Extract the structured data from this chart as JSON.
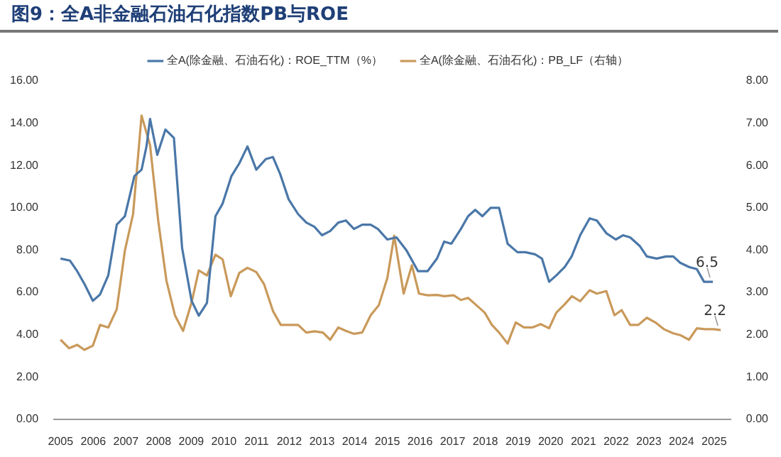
{
  "chart_data": {
    "type": "line",
    "title": "图9：全A非金融石油石化指数PB与ROE",
    "xlim": [
      2004.8,
      2025.5
    ],
    "xticks": [
      2005,
      2006,
      2007,
      2008,
      2009,
      2010,
      2011,
      2012,
      2013,
      2014,
      2015,
      2016,
      2017,
      2018,
      2019,
      2020,
      2021,
      2022,
      2023,
      2024,
      2025
    ],
    "ylim": [
      0,
      16
    ],
    "yticks": [
      {
        "value": 0,
        "label": "0.00"
      },
      {
        "value": 2,
        "label": "2.00"
      },
      {
        "value": 4,
        "label": "4.00"
      },
      {
        "value": 6,
        "label": "6.00"
      },
      {
        "value": 8,
        "label": "8.00"
      },
      {
        "value": 10,
        "label": "10.00"
      },
      {
        "value": 12,
        "label": "12.00"
      },
      {
        "value": 14,
        "label": "14.00"
      },
      {
        "value": 16,
        "label": "16.00"
      }
    ],
    "y2lim": [
      0,
      8
    ],
    "y2ticks": [
      {
        "value": 0,
        "label": "0.00"
      },
      {
        "value": 1,
        "label": "1.00"
      },
      {
        "value": 2,
        "label": "2.00"
      },
      {
        "value": 3,
        "label": "3.00"
      },
      {
        "value": 4,
        "label": "4.00"
      },
      {
        "value": 5,
        "label": "5.00"
      },
      {
        "value": 6,
        "label": "6.00"
      },
      {
        "value": 7,
        "label": "7.00"
      },
      {
        "value": 8,
        "label": "8.00"
      }
    ],
    "grid": false,
    "legend": "top",
    "marker": "none",
    "line_style": "solid",
    "annotations": [
      "6.5",
      "2.2"
    ],
    "series": [
      {
        "name": "全A(除金融、石油石化)：ROE_TTM（%）",
        "color": "#4a77a8",
        "x": [
          2005.0,
          2005.29,
          2005.51,
          2005.73,
          2005.99,
          2006.21,
          2006.46,
          2006.72,
          2006.97,
          2007.26,
          2007.48,
          2007.63,
          2007.74,
          2007.96,
          2008.21,
          2008.47,
          2008.72,
          2009.01,
          2009.23,
          2009.48,
          2009.74,
          2009.96,
          2010.23,
          2010.47,
          2010.72,
          2010.99,
          2011.28,
          2011.5,
          2011.72,
          2011.98,
          2012.27,
          2012.52,
          2012.77,
          2013.0,
          2013.25,
          2013.5,
          2013.73,
          2013.98,
          2014.23,
          2014.49,
          2014.71,
          2015.0,
          2015.28,
          2015.58,
          2015.94,
          2016.23,
          2016.52,
          2016.74,
          2016.96,
          2017.25,
          2017.47,
          2017.69,
          2017.91,
          2018.16,
          2018.42,
          2018.68,
          2018.98,
          2019.22,
          2019.52,
          2019.73,
          2019.95,
          2020.17,
          2020.43,
          2020.64,
          2020.9,
          2021.19,
          2021.41,
          2021.7,
          2021.99,
          2022.21,
          2022.43,
          2022.72,
          2022.94,
          2023.24,
          2023.53,
          2023.75,
          2023.96,
          2024.23,
          2024.47,
          2024.69,
          2024.96
        ],
        "values": [
          7.6,
          7.5,
          7.0,
          6.4,
          5.6,
          5.9,
          6.8,
          9.2,
          9.6,
          11.5,
          11.8,
          12.9,
          14.2,
          12.5,
          13.7,
          13.3,
          8.1,
          5.6,
          4.9,
          5.5,
          9.6,
          10.2,
          11.5,
          12.1,
          12.9,
          11.8,
          12.3,
          12.4,
          11.6,
          10.4,
          9.7,
          9.3,
          9.1,
          8.7,
          8.9,
          9.3,
          9.4,
          9.0,
          9.2,
          9.2,
          9.0,
          8.5,
          8.6,
          8.0,
          7.0,
          7.0,
          7.6,
          8.4,
          8.3,
          9.0,
          9.6,
          9.9,
          9.6,
          10.0,
          10.0,
          8.3,
          7.9,
          7.9,
          7.8,
          7.6,
          6.5,
          6.8,
          7.2,
          7.7,
          8.7,
          9.5,
          9.4,
          8.8,
          8.5,
          8.7,
          8.6,
          8.2,
          7.7,
          7.6,
          7.7,
          7.7,
          7.4,
          7.2,
          7.1,
          6.5,
          6.5
        ]
      },
      {
        "name": "全A(除金融、石油石化)：PB_LF（右轴）",
        "color": "#c9995a",
        "axis": "y2",
        "x": [
          2005.0,
          2005.26,
          2005.51,
          2005.73,
          2005.99,
          2006.21,
          2006.46,
          2006.72,
          2006.97,
          2007.22,
          2007.48,
          2007.74,
          2007.99,
          2008.24,
          2008.5,
          2008.75,
          2009.01,
          2009.23,
          2009.48,
          2009.74,
          2009.96,
          2010.21,
          2010.47,
          2010.72,
          2010.99,
          2011.23,
          2011.5,
          2011.74,
          2011.98,
          2012.27,
          2012.52,
          2012.77,
          2013.03,
          2013.25,
          2013.5,
          2013.73,
          2013.98,
          2014.23,
          2014.49,
          2014.74,
          2015.0,
          2015.21,
          2015.5,
          2015.75,
          2015.97,
          2016.23,
          2016.52,
          2016.74,
          2017.03,
          2017.25,
          2017.47,
          2017.72,
          2017.98,
          2018.2,
          2018.42,
          2018.68,
          2018.93,
          2019.18,
          2019.44,
          2019.69,
          2019.95,
          2020.17,
          2020.43,
          2020.65,
          2020.9,
          2021.19,
          2021.41,
          2021.7,
          2021.95,
          2022.17,
          2022.43,
          2022.68,
          2022.94,
          2023.2,
          2023.46,
          2023.75,
          2023.96,
          2024.23,
          2024.47,
          2024.72,
          2024.98,
          2025.2
        ],
        "values": [
          1.88,
          1.68,
          1.76,
          1.64,
          1.74,
          2.23,
          2.17,
          2.6,
          3.99,
          4.85,
          7.18,
          6.48,
          4.69,
          3.28,
          2.46,
          2.09,
          2.76,
          3.52,
          3.4,
          3.89,
          3.78,
          2.91,
          3.46,
          3.58,
          3.48,
          3.19,
          2.56,
          2.23,
          2.23,
          2.23,
          2.05,
          2.08,
          2.05,
          1.88,
          2.17,
          2.09,
          2.02,
          2.05,
          2.46,
          2.7,
          3.34,
          4.34,
          2.97,
          3.64,
          2.97,
          2.93,
          2.94,
          2.91,
          2.93,
          2.82,
          2.87,
          2.7,
          2.52,
          2.23,
          2.05,
          1.79,
          2.29,
          2.17,
          2.17,
          2.25,
          2.15,
          2.52,
          2.72,
          2.91,
          2.79,
          3.05,
          2.97,
          3.03,
          2.46,
          2.58,
          2.23,
          2.23,
          2.4,
          2.29,
          2.13,
          2.03,
          1.99,
          1.88,
          2.15,
          2.13,
          2.13,
          2.11
        ]
      }
    ]
  }
}
